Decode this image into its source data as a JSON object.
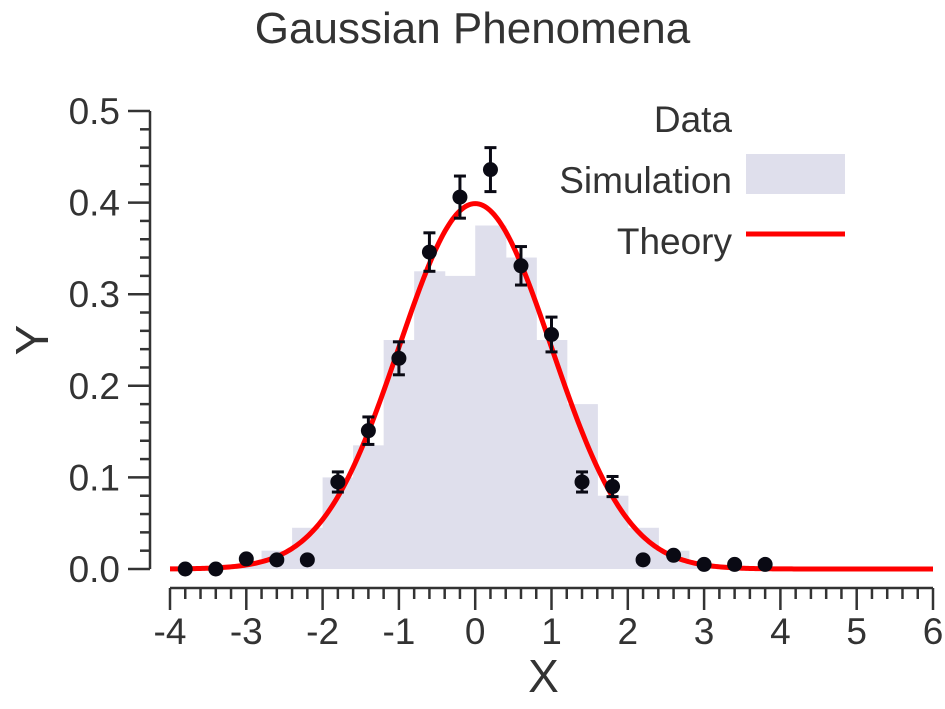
{
  "chart_data": {
    "type": "bar",
    "title": "Gaussian Phenomena",
    "xlabel": "X",
    "ylabel": "Y",
    "xlim": [
      -4,
      6
    ],
    "ylim": [
      0.0,
      0.5
    ],
    "xticks": [
      "-4",
      "-3",
      "-2",
      "-1",
      "0",
      "1",
      "2",
      "3",
      "4",
      "5",
      "6"
    ],
    "yticks": [
      "0.0",
      "0.1",
      "0.2",
      "0.3",
      "0.4",
      "0.5"
    ],
    "legend": {
      "title": "Data",
      "position": "top-right",
      "entries": [
        "Simulation",
        "Theory"
      ]
    },
    "colors": {
      "simulation": "#dfdfec",
      "theory": "#ff0000",
      "data_points": "#0a0a14",
      "axes": "#333333"
    },
    "simulation": {
      "name": "Simulation",
      "bin_edges": [
        -3.6,
        -3.2,
        -2.8,
        -2.4,
        -2.0,
        -1.6,
        -1.2,
        -0.8,
        -0.4,
        0.0,
        0.4,
        0.8,
        1.2,
        1.6,
        2.0,
        2.4,
        2.8,
        3.2,
        3.6
      ],
      "values": [
        0.0,
        0.005,
        0.02,
        0.045,
        0.1,
        0.135,
        0.25,
        0.325,
        0.32,
        0.375,
        0.34,
        0.25,
        0.18,
        0.08,
        0.045,
        0.02,
        0.005,
        0.0
      ]
    },
    "theory": {
      "name": "Theory",
      "function": "normal_pdf",
      "mean": 0,
      "std": 1
    },
    "data_points": {
      "x": [
        -3.8,
        -3.4,
        -3.0,
        -2.6,
        -2.2,
        -1.8,
        -1.4,
        -1.0,
        -0.6,
        -0.2,
        0.2,
        0.6,
        1.0,
        1.4,
        1.8,
        2.2,
        2.6,
        3.0,
        3.4,
        3.8
      ],
      "y": [
        0.0,
        0.0,
        0.011,
        0.01,
        0.01,
        0.095,
        0.151,
        0.23,
        0.346,
        0.406,
        0.436,
        0.331,
        0.256,
        0.095,
        0.09,
        0.01,
        0.015,
        0.005,
        0.005,
        0.005
      ],
      "yerr": [
        0.0,
        0.0,
        0.0,
        0.0,
        0.0,
        0.011,
        0.015,
        0.018,
        0.021,
        0.023,
        0.024,
        0.021,
        0.019,
        0.011,
        0.011,
        0.0,
        0.0,
        0.0,
        0.0,
        0.0
      ]
    }
  }
}
